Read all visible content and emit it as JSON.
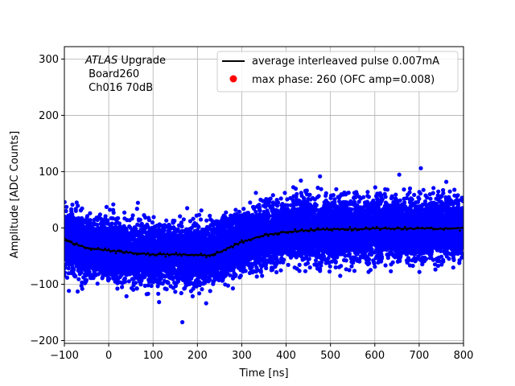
{
  "chart_data": {
    "type": "scatter",
    "xlabel": "Time [ns]",
    "ylabel": "Amplitude [ADC Counts]",
    "xlim": [
      -100,
      800
    ],
    "ylim": [
      -205,
      322
    ],
    "grid": true,
    "legend_placement": "top-right",
    "x_ticks": [
      -100,
      0,
      100,
      200,
      300,
      400,
      500,
      600,
      700,
      800
    ],
    "y_ticks": [
      -200,
      -100,
      0,
      100,
      200,
      300
    ],
    "annotation": {
      "italic": "ATLAS",
      "rest": " Upgrade",
      "line2": " Board260",
      "line3": " Ch016 70dB"
    },
    "series": [
      {
        "name": "average interleaved pulse 0.007mA",
        "kind": "line",
        "color": "#000000",
        "x": [
          -100,
          -50,
          0,
          50,
          100,
          150,
          200,
          225,
          250,
          300,
          350,
          400,
          450,
          500,
          550,
          600,
          650,
          700,
          750,
          800
        ],
        "y": [
          -22,
          -35,
          -40,
          -44,
          -47,
          -47,
          -48,
          -49,
          -43,
          -25,
          -13,
          -7,
          -4,
          -2,
          -2,
          -1,
          -1,
          -1,
          -1,
          0
        ]
      },
      {
        "name": "max phase: 260 (OFC amp=0.008)",
        "kind": "marker",
        "color": "#ff0000",
        "x": [],
        "y": []
      }
    ],
    "samples": {
      "color": "#0000ff",
      "spread_sd": 25,
      "count": 12000
    }
  }
}
